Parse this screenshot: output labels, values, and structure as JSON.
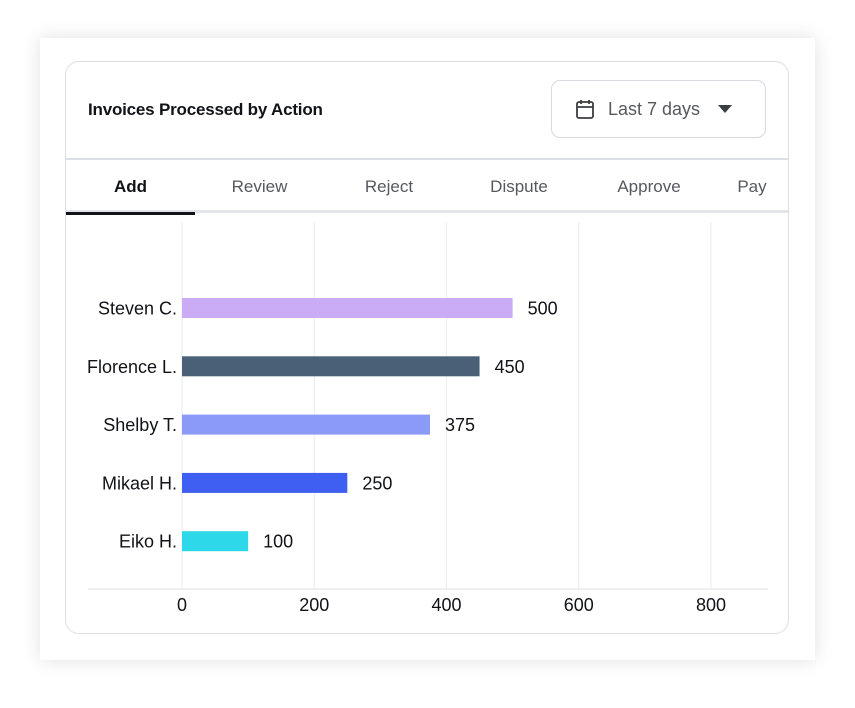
{
  "card": {
    "title": "Invoices Processed by Action"
  },
  "date_range": {
    "selected": "Last 7 days",
    "icon": "calendar-icon"
  },
  "tabs": [
    {
      "label": "Add",
      "active": true
    },
    {
      "label": "Review",
      "active": false
    },
    {
      "label": "Reject",
      "active": false
    },
    {
      "label": "Dispute",
      "active": false
    },
    {
      "label": "Approve",
      "active": false
    },
    {
      "label": "Pay",
      "active": false
    }
  ],
  "chart_data": {
    "type": "bar",
    "orientation": "horizontal",
    "categories": [
      "Steven C.",
      "Florence L.",
      "Shelby T.",
      "Mikael H.",
      "Eiko H."
    ],
    "values": [
      500,
      450,
      375,
      250,
      100
    ],
    "colors": [
      "#c9acf5",
      "#4a6076",
      "#8b9af7",
      "#3f5ff2",
      "#2dd8e8"
    ],
    "data_labels": [
      "500",
      "450",
      "375",
      "250",
      "100"
    ],
    "xticks": [
      0,
      200,
      400,
      600,
      800
    ],
    "xlim": [
      0,
      800
    ],
    "grid": true,
    "title": "",
    "xlabel": "",
    "ylabel": ""
  }
}
